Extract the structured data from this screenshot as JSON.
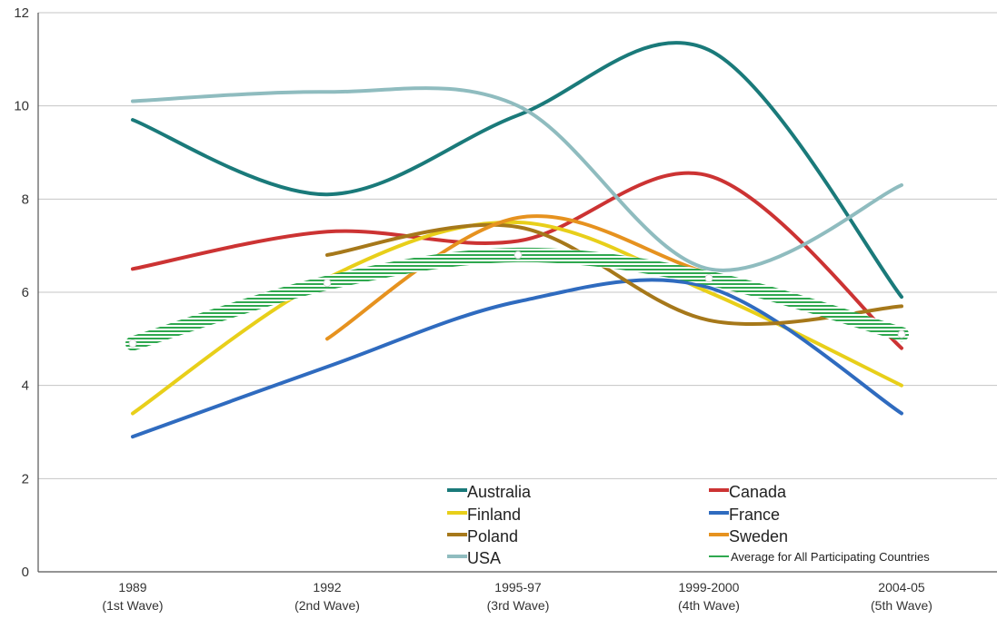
{
  "chart_data": {
    "type": "line",
    "smooth": true,
    "grid": true,
    "legend_placement": "bottom-center",
    "ylim": [
      0,
      12
    ],
    "yticks": [
      0,
      2,
      4,
      6,
      8,
      10,
      12
    ],
    "categories": [
      [
        "1989",
        "(1st Wave)"
      ],
      [
        "1992",
        "(2nd Wave)"
      ],
      [
        "1995-97",
        "(3rd Wave)"
      ],
      [
        "1999-2000",
        "(4th Wave)"
      ],
      [
        "2004-05",
        "(5th Wave)"
      ]
    ],
    "series": [
      {
        "name": "Australia",
        "color": "#1a7a7a",
        "values": [
          9.7,
          8.1,
          9.8,
          11.2,
          5.9
        ]
      },
      {
        "name": "Canada",
        "color": "#cc3333",
        "values": [
          6.5,
          7.3,
          7.1,
          8.5,
          4.8
        ]
      },
      {
        "name": "Finland",
        "color": "#e8cf1a",
        "values": [
          3.4,
          6.3,
          7.5,
          6.0,
          4.0
        ]
      },
      {
        "name": "France",
        "color": "#2f6bbf",
        "values": [
          2.9,
          4.4,
          5.8,
          6.1,
          3.4
        ]
      },
      {
        "name": "Poland",
        "color": "#a6781a",
        "values": [
          null,
          6.8,
          7.4,
          5.4,
          5.7
        ]
      },
      {
        "name": "Sweden",
        "color": "#e6921f",
        "values": [
          null,
          5.0,
          7.6,
          6.4,
          5.1
        ]
      },
      {
        "name": "USA",
        "color": "#8fbcbf",
        "values": [
          10.1,
          10.3,
          10.0,
          6.5,
          8.3
        ]
      },
      {
        "name": "Average for All Participating Countries",
        "color": "#2fa84f",
        "values": [
          4.9,
          6.2,
          6.8,
          6.3,
          5.1
        ],
        "style": "striped"
      }
    ]
  }
}
